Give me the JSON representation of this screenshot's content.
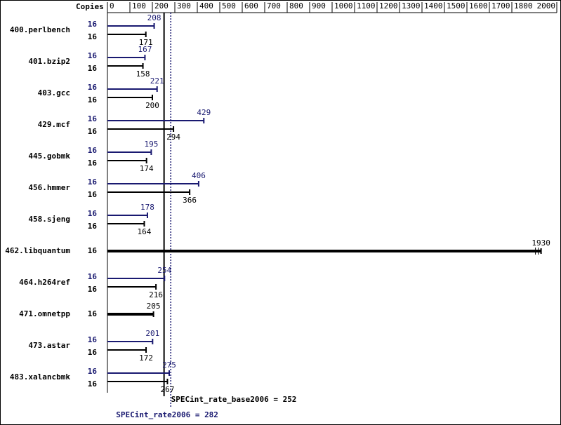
{
  "chart_data": {
    "type": "bar",
    "orientation": "horizontal",
    "copies_header": "Copies",
    "categories": [
      "400.perlbench",
      "401.bzip2",
      "403.gcc",
      "429.mcf",
      "445.gobmk",
      "456.hmmer",
      "458.sjeng",
      "462.libquantum",
      "464.h264ref",
      "471.omnetpp",
      "473.astar",
      "483.xalancbmk"
    ],
    "series": [
      {
        "color": "#191970",
        "copies": [
          16,
          16,
          16,
          16,
          16,
          16,
          16,
          null,
          16,
          null,
          16,
          16
        ],
        "values": [
          208,
          167,
          221,
          429,
          195,
          406,
          178,
          null,
          254,
          null,
          201,
          275
        ]
      },
      {
        "color": "#000000",
        "copies": [
          16,
          16,
          16,
          16,
          16,
          16,
          16,
          16,
          16,
          16,
          16,
          16
        ],
        "values": [
          171,
          158,
          200,
          294,
          174,
          366,
          164,
          1930,
          216,
          205,
          172,
          267
        ]
      }
    ],
    "xlim": [
      0,
      2000
    ],
    "xticks": [
      0,
      100,
      200,
      300,
      400,
      500,
      600,
      700,
      800,
      900,
      1000,
      1100,
      1200,
      1300,
      1400,
      1500,
      1600,
      1700,
      1800,
      2000
    ],
    "reference_lines": [
      {
        "value": 252,
        "label": "SPECint_rate_base2006 = 252",
        "color": "#000000",
        "style": "solid"
      },
      {
        "value": 282,
        "label": "SPECint_rate2006 = 282",
        "color": "#191970",
        "style": "dotted"
      }
    ]
  }
}
